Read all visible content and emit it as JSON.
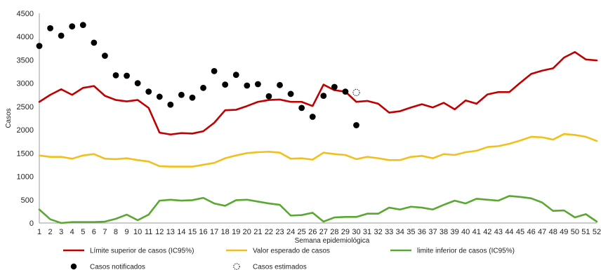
{
  "chart_data": {
    "type": "line",
    "xlabel": "Semana epidemiológica",
    "ylabel": "Casos",
    "ylim": [
      0,
      4500
    ],
    "yticks": [
      0,
      500,
      1000,
      1500,
      2000,
      2500,
      3000,
      3500,
      4000,
      4500
    ],
    "x": [
      1,
      2,
      3,
      4,
      5,
      6,
      7,
      8,
      9,
      10,
      11,
      12,
      13,
      14,
      15,
      16,
      17,
      18,
      19,
      20,
      21,
      22,
      23,
      24,
      25,
      26,
      27,
      28,
      29,
      30,
      31,
      32,
      33,
      34,
      35,
      36,
      37,
      38,
      39,
      40,
      41,
      42,
      43,
      44,
      45,
      46,
      47,
      48,
      49,
      50,
      51,
      52
    ],
    "grid": false,
    "legend_position": "bottom",
    "series": [
      {
        "name": "Límite superior de casos (IC95%)",
        "kind": "line",
        "color": "#c00000",
        "values": [
          2600,
          2750,
          2870,
          2750,
          2900,
          2940,
          2730,
          2640,
          2610,
          2640,
          2470,
          1940,
          1900,
          1930,
          1920,
          1970,
          2150,
          2420,
          2430,
          2510,
          2600,
          2640,
          2650,
          2600,
          2600,
          2510,
          2970,
          2850,
          2820,
          2600,
          2620,
          2560,
          2370,
          2400,
          2480,
          2550,
          2480,
          2580,
          2440,
          2630,
          2560,
          2760,
          2810,
          2810,
          3010,
          3200,
          3270,
          3320,
          3550,
          3670,
          3510,
          3490
        ]
      },
      {
        "name": "Valor esperado de casos",
        "kind": "line",
        "color": "#f2c01c",
        "values": [
          1450,
          1420,
          1420,
          1380,
          1450,
          1480,
          1380,
          1370,
          1390,
          1350,
          1320,
          1220,
          1210,
          1210,
          1210,
          1250,
          1290,
          1390,
          1450,
          1500,
          1520,
          1530,
          1510,
          1380,
          1390,
          1360,
          1510,
          1480,
          1460,
          1370,
          1420,
          1390,
          1350,
          1350,
          1420,
          1440,
          1390,
          1480,
          1460,
          1520,
          1550,
          1630,
          1650,
          1700,
          1770,
          1850,
          1840,
          1790,
          1910,
          1890,
          1850,
          1760
        ]
      },
      {
        "name": "limite inferior de casos (IC95%)",
        "kind": "line",
        "color": "#5aa832",
        "values": [
          290,
          80,
          0,
          20,
          20,
          20,
          30,
          90,
          180,
          60,
          180,
          480,
          500,
          480,
          490,
          540,
          420,
          370,
          490,
          500,
          460,
          420,
          390,
          160,
          170,
          220,
          30,
          120,
          130,
          130,
          200,
          200,
          330,
          290,
          350,
          330,
          290,
          390,
          480,
          420,
          520,
          500,
          480,
          580,
          560,
          530,
          440,
          260,
          270,
          120,
          190,
          30
        ]
      },
      {
        "name": "Casos notificados",
        "kind": "scatter",
        "color": "#000000",
        "x": [
          1,
          2,
          3,
          4,
          5,
          6,
          7,
          8,
          9,
          10,
          11,
          12,
          13,
          14,
          15,
          16,
          17,
          18,
          19,
          20,
          21,
          22,
          23,
          24,
          25,
          26,
          27,
          28,
          29,
          30
        ],
        "values": [
          3800,
          4180,
          4020,
          4220,
          4250,
          3870,
          3590,
          3170,
          3160,
          3000,
          2820,
          2710,
          2540,
          2750,
          2690,
          2900,
          3260,
          2970,
          3180,
          2950,
          2980,
          2720,
          2960,
          2770,
          2470,
          2280,
          2730,
          2920,
          2820,
          2100
        ]
      },
      {
        "name": "Casos estimados",
        "kind": "scatter",
        "style": "dotted-ring",
        "color": "#1f2a44",
        "x": [
          30
        ],
        "values": [
          2800
        ]
      }
    ]
  }
}
